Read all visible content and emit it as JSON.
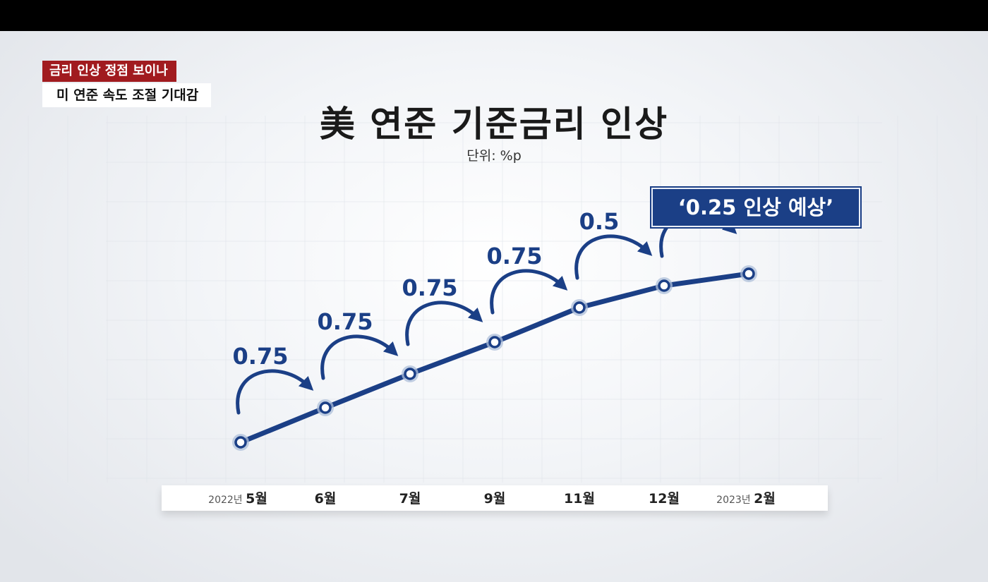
{
  "header": {
    "tag_top": "금리 인상 정점 보이나",
    "tag_bottom": "미 연준 속도 조절 기대감"
  },
  "chart_data": {
    "type": "line",
    "title": "美 연준 기준금리 인상",
    "unit": "단위: %p",
    "categories": [
      {
        "year": "2022년",
        "month": "5월"
      },
      {
        "year": "",
        "month": "6월"
      },
      {
        "year": "",
        "month": "7월"
      },
      {
        "year": "",
        "month": "9월"
      },
      {
        "year": "",
        "month": "11월"
      },
      {
        "year": "",
        "month": "12월"
      },
      {
        "year": "2023년",
        "month": "2월"
      }
    ],
    "increments": [
      "0.75",
      "0.75",
      "0.75",
      "0.75",
      "0.5",
      ""
    ],
    "prediction_label": "‘0.25 인상 예상’",
    "colors": {
      "line": "#1b3f86",
      "accent_red": "#a11b1f"
    }
  }
}
